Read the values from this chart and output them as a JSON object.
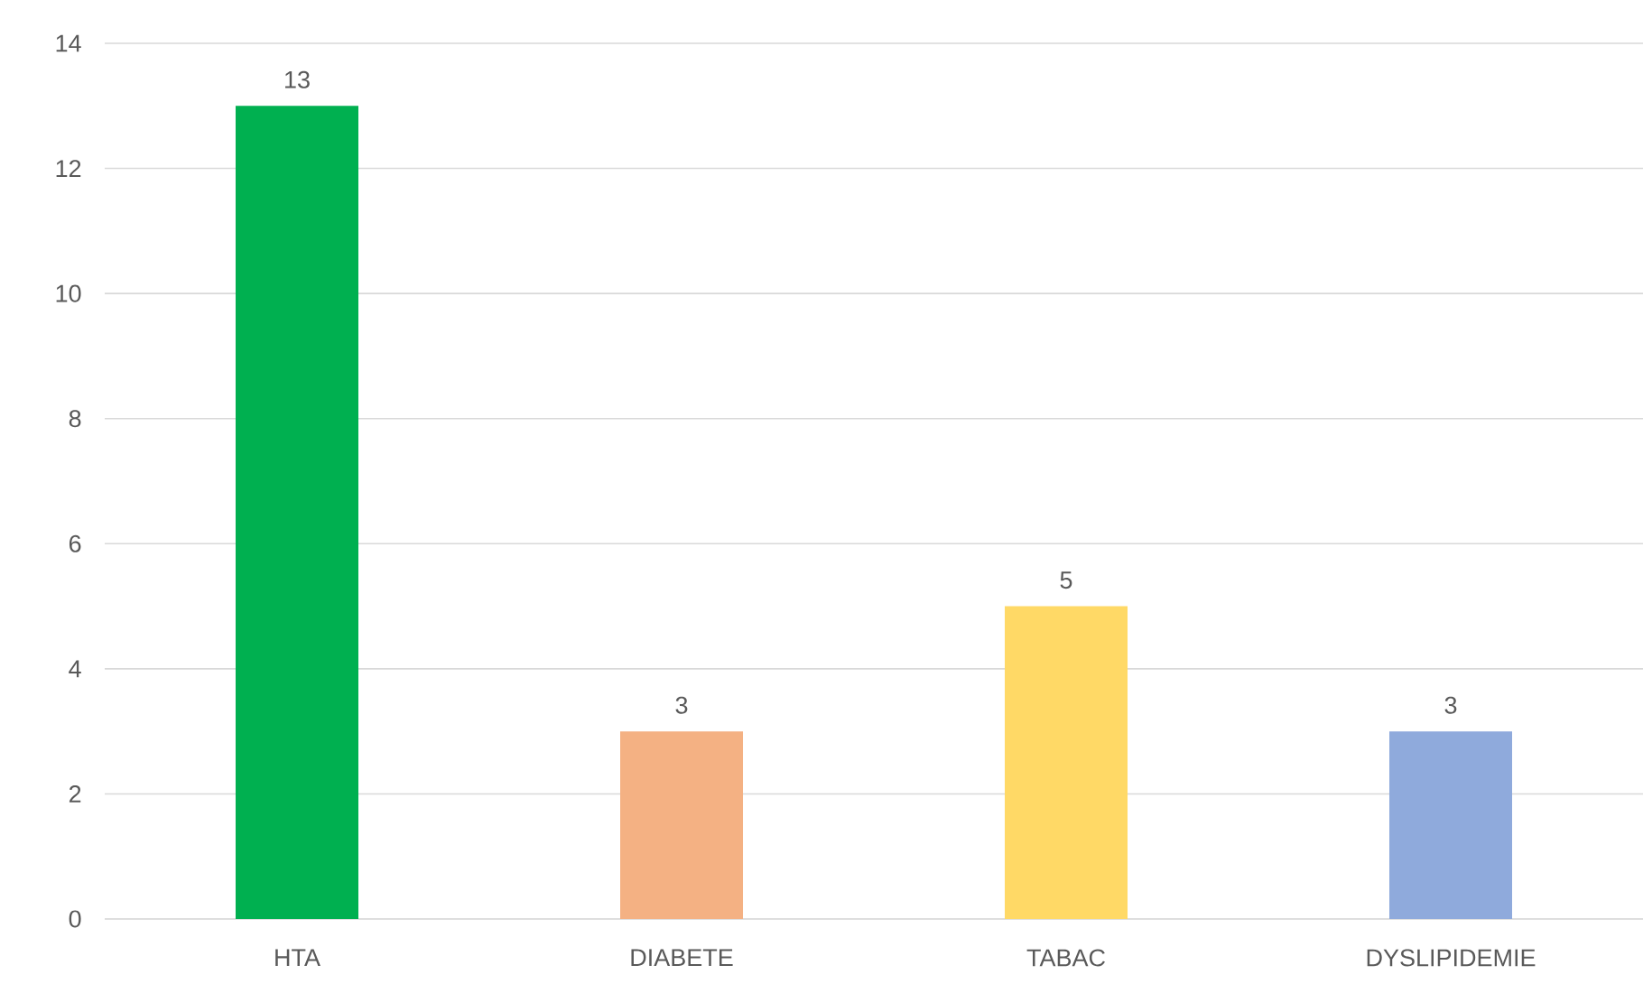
{
  "chart_data": {
    "type": "bar",
    "categories": [
      "HTA",
      "DIABETE",
      "TABAC",
      "DYSLIPIDEMIE"
    ],
    "values": [
      13,
      3,
      5,
      3
    ],
    "colors": [
      "#00b050",
      "#f4b183",
      "#ffd966",
      "#8faadc"
    ],
    "ylim": [
      0,
      14
    ],
    "yticks": [
      0,
      2,
      4,
      6,
      8,
      10,
      12,
      14
    ],
    "grid": "y",
    "data_labels": true
  }
}
